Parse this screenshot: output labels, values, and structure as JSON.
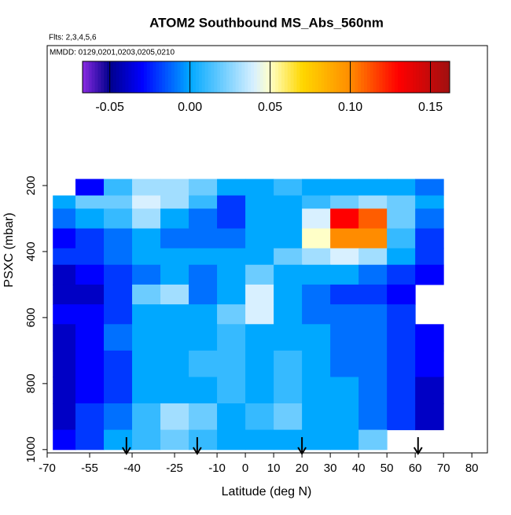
{
  "chart_data": {
    "type": "heatmap",
    "title": "ATOM2 Southbound MS_Abs_560nm",
    "subtitle": "Flts: 2,3,4,5,6",
    "annotation": "MMDD: 0129,0201,0203,0205,0210",
    "x_label": "Latitude (deg N)",
    "y_label": "PSXC (mbar)",
    "xlim": [
      -70,
      85.5
    ],
    "xticks": [
      -70,
      -55,
      -40,
      -25,
      -10,
      0,
      10,
      20,
      30,
      40,
      50,
      60,
      70,
      80
    ],
    "ylim": [
      1010,
      -224
    ],
    "yticks": [
      200,
      400,
      600,
      800,
      1000
    ],
    "x_edges": [
      -68,
      -60,
      -50,
      -40,
      -30,
      -20,
      -10,
      0,
      10,
      20,
      30,
      40,
      50,
      60,
      70
    ],
    "y_edges": [
      180,
      230,
      270,
      330,
      390,
      440,
      500,
      560,
      620,
      700,
      780,
      860,
      940,
      1000
    ],
    "values": [
      [
        null,
        -0.03,
        0.01,
        0.03,
        0.03,
        0.02,
        0.0,
        0.0,
        0.01,
        0.0,
        0.0,
        0.0,
        0.0,
        -0.01
      ],
      [
        0.0,
        0.02,
        0.02,
        0.04,
        0.03,
        0.01,
        -0.02,
        0.0,
        0.0,
        0.01,
        0.02,
        0.03,
        0.02,
        0.0
      ],
      [
        -0.01,
        0.0,
        0.01,
        0.03,
        0.0,
        -0.01,
        -0.02,
        0.0,
        0.0,
        0.04,
        0.13,
        0.11,
        0.02,
        -0.01
      ],
      [
        -0.03,
        -0.02,
        -0.01,
        0.0,
        -0.01,
        -0.01,
        -0.01,
        0.0,
        0.0,
        0.05,
        0.1,
        0.1,
        0.01,
        -0.02
      ],
      [
        -0.02,
        -0.02,
        -0.01,
        0.0,
        0.0,
        0.0,
        0.0,
        0.0,
        0.02,
        0.03,
        0.04,
        0.03,
        0.0,
        -0.02
      ],
      [
        -0.04,
        -0.03,
        -0.02,
        -0.01,
        0.0,
        -0.01,
        0.0,
        0.02,
        0.0,
        0.0,
        0.0,
        -0.01,
        -0.02,
        -0.03
      ],
      [
        -0.04,
        -0.04,
        -0.02,
        0.02,
        0.03,
        -0.01,
        0.0,
        0.04,
        0.0,
        -0.01,
        -0.02,
        -0.02,
        -0.03,
        null
      ],
      [
        -0.03,
        -0.03,
        -0.02,
        0.0,
        0.0,
        0.0,
        0.02,
        0.04,
        0.0,
        -0.01,
        -0.01,
        -0.01,
        -0.02,
        null
      ],
      [
        -0.04,
        -0.03,
        -0.01,
        0.0,
        0.0,
        0.0,
        0.01,
        0.0,
        0.0,
        0.0,
        -0.01,
        -0.01,
        -0.02,
        -0.03
      ],
      [
        -0.04,
        -0.03,
        -0.02,
        0.0,
        0.0,
        0.01,
        0.01,
        0.0,
        0.01,
        0.0,
        -0.01,
        -0.01,
        -0.02,
        -0.03
      ],
      [
        -0.04,
        -0.03,
        -0.02,
        0.0,
        0.0,
        0.0,
        0.01,
        0.0,
        0.01,
        0.0,
        0.0,
        -0.01,
        -0.02,
        -0.04
      ],
      [
        -0.04,
        -0.02,
        -0.01,
        0.01,
        0.03,
        0.02,
        0.0,
        0.01,
        0.02,
        0.0,
        0.0,
        -0.01,
        -0.02,
        -0.04
      ],
      [
        -0.03,
        -0.02,
        0.0,
        0.01,
        0.02,
        0.01,
        0.0,
        0.0,
        0.0,
        0.0,
        0.0,
        0.02,
        null,
        null
      ]
    ],
    "markers_x": [
      -42,
      -17,
      20,
      61
    ],
    "colorbar_lim": [
      -0.067,
      0.162
    ],
    "colorbar_ticks": [
      -0.05,
      {
        "value": 0,
        "label": "0.00"
      },
      {
        "value": 0.05,
        "label": "0.05"
      },
      {
        "value": 0.1,
        "label": "0.10"
      },
      0.15
    ],
    "colorscale": [
      [
        -0.067,
        "#8a2be2"
      ],
      [
        -0.05,
        "#00008b"
      ],
      [
        -0.03,
        "#0000ff"
      ],
      [
        0,
        "#00a8ff"
      ],
      [
        0.04,
        "#d8f0ff"
      ],
      [
        0.05,
        "#ffffc8"
      ],
      [
        0.07,
        "#ffd700"
      ],
      [
        0.1,
        "#ff8c00"
      ],
      [
        0.13,
        "#ff0000"
      ],
      [
        0.162,
        "#a01010"
      ]
    ]
  }
}
